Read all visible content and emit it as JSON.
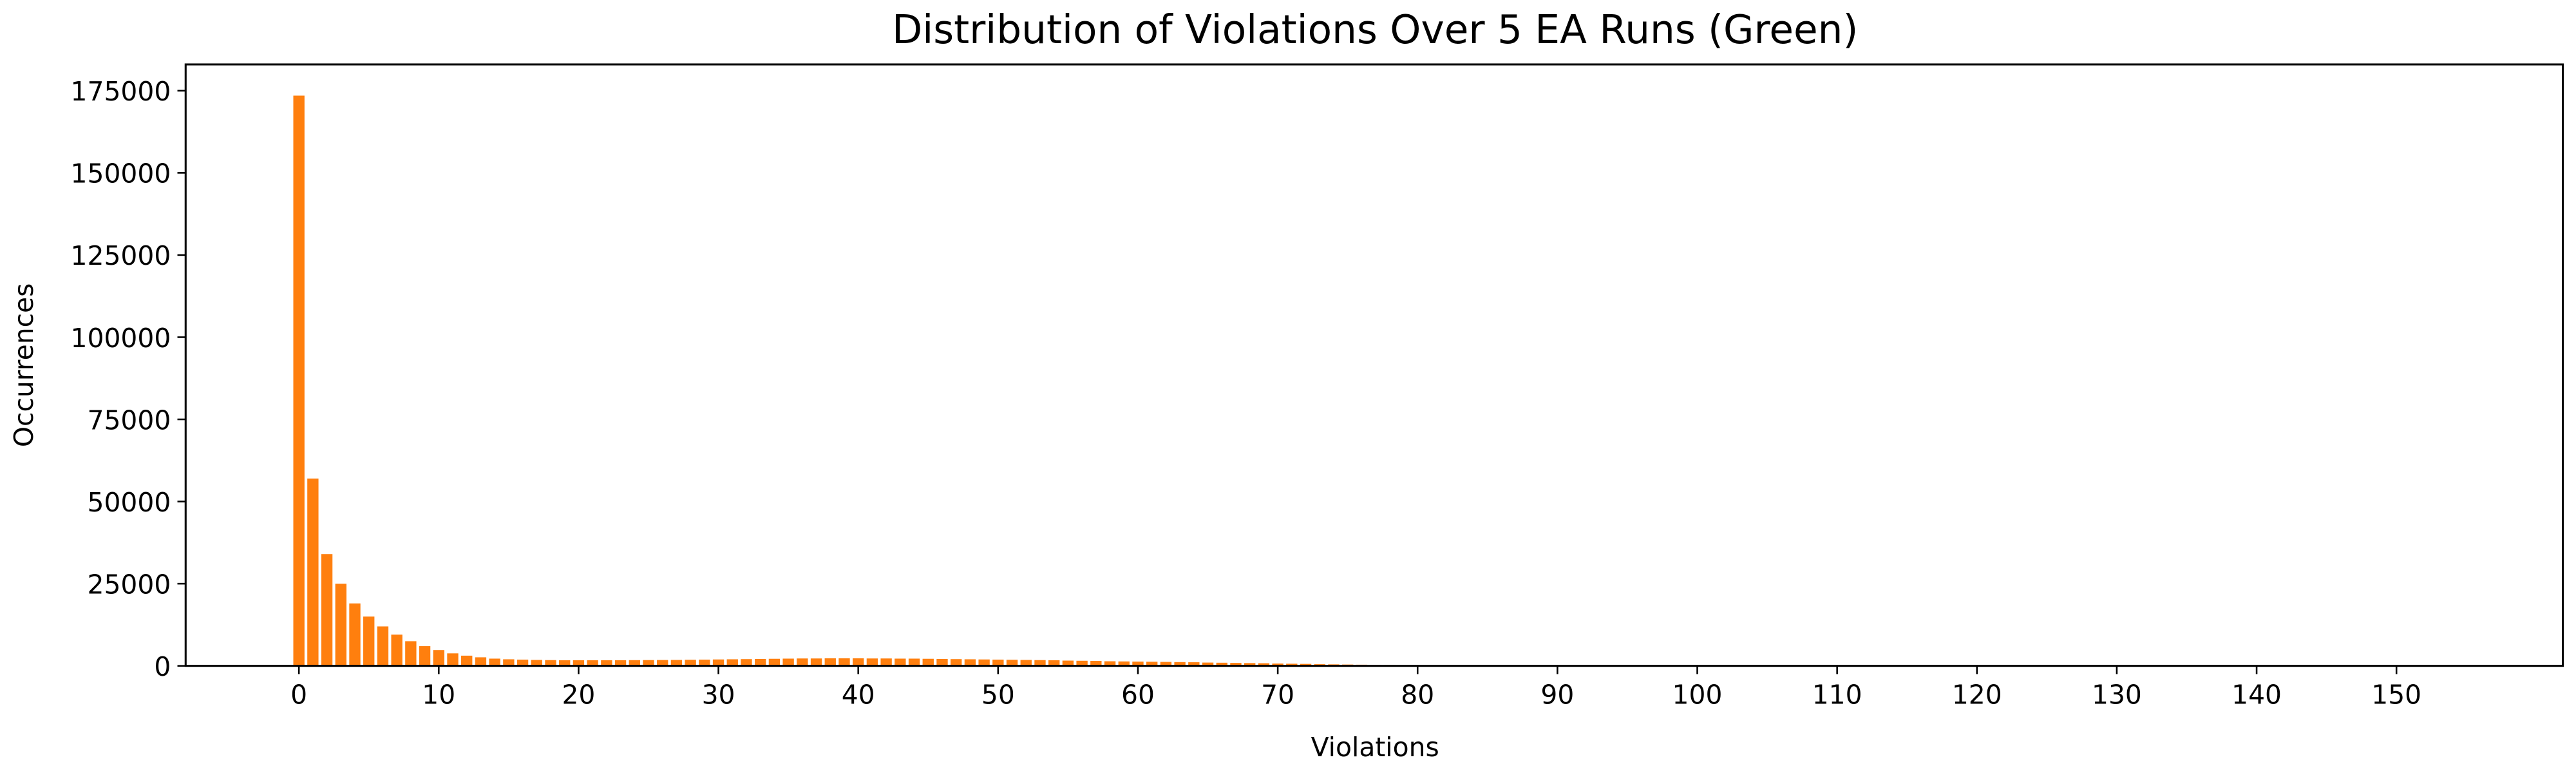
{
  "chart_data": {
    "type": "bar",
    "title": "Distribution of Violations Over 5 EA Runs (Green)",
    "xlabel": "Violations",
    "ylabel": "Occurrences",
    "color": "#ff7f0e",
    "x": [
      0,
      1,
      2,
      3,
      4,
      5,
      6,
      7,
      8,
      9,
      10,
      11,
      12,
      13,
      14,
      15,
      16,
      17,
      18,
      19,
      20,
      21,
      22,
      23,
      24,
      25,
      26,
      27,
      28,
      29,
      30,
      31,
      32,
      33,
      34,
      35,
      36,
      37,
      38,
      39,
      40,
      41,
      42,
      43,
      44,
      45,
      46,
      47,
      48,
      49,
      50,
      51,
      52,
      53,
      54,
      55,
      56,
      57,
      58,
      59,
      60,
      61,
      62,
      63,
      64,
      65,
      66,
      67,
      68,
      69,
      70,
      71,
      72,
      73,
      74,
      75,
      76,
      77,
      78,
      79,
      80,
      81,
      82,
      83,
      84,
      85,
      86,
      87,
      88,
      89,
      90
    ],
    "values": [
      173500,
      57000,
      34000,
      25000,
      19000,
      15000,
      12000,
      9500,
      7500,
      6000,
      4800,
      3800,
      3100,
      2600,
      2200,
      2000,
      1900,
      1800,
      1750,
      1700,
      1700,
      1700,
      1700,
      1720,
      1740,
      1760,
      1780,
      1800,
      1850,
      1900,
      1950,
      2000,
      2050,
      2100,
      2150,
      2200,
      2250,
      2250,
      2300,
      2300,
      2300,
      2250,
      2250,
      2200,
      2200,
      2150,
      2100,
      2050,
      2000,
      1950,
      1900,
      1850,
      1800,
      1750,
      1700,
      1600,
      1550,
      1500,
      1400,
      1350,
      1300,
      1250,
      1200,
      1150,
      1100,
      1000,
      950,
      900,
      850,
      800,
      700,
      650,
      600,
      500,
      450,
      400,
      350,
      300,
      250,
      200,
      150,
      120,
      100,
      80,
      60,
      50,
      40,
      30,
      20,
      10,
      5
    ],
    "xlim": [
      -8.1,
      161.9
    ],
    "ylim": [
      0,
      183000
    ],
    "xticks": [
      0,
      10,
      20,
      30,
      40,
      50,
      60,
      70,
      80,
      90,
      100,
      110,
      120,
      130,
      140,
      150
    ],
    "yticks": [
      0,
      25000,
      50000,
      75000,
      100000,
      125000,
      150000,
      175000
    ]
  }
}
